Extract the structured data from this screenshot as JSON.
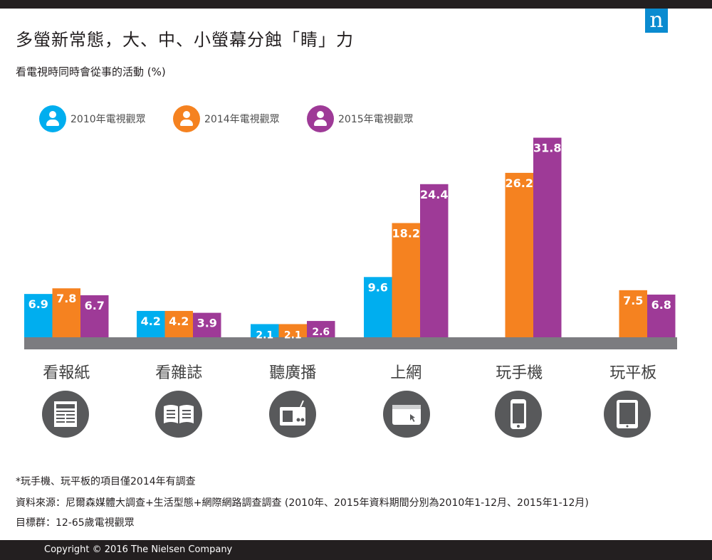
{
  "header": {
    "logo": "n",
    "title": "多螢新常態，大、中、小螢幕分蝕「睛」力",
    "subtitle": "看電視時同時會從事的活動 (%)"
  },
  "colors": {
    "series_2010": "#00aeef",
    "series_2014": "#f58220",
    "series_2015": "#9e3a97",
    "baseline": "#7c7c80",
    "icon_circle": "#58595b"
  },
  "icons": [
    "newspaper-icon",
    "magazine-icon",
    "radio-icon",
    "laptop-icon",
    "smartphone-icon",
    "tablet-icon"
  ],
  "chart_data": {
    "type": "bar",
    "title": "多螢新常態，大、中、小螢幕分蝕「睛」力",
    "subtitle": "看電視時同時會從事的活動 (%)",
    "categories": [
      "看報紙",
      "看雜誌",
      "聽廣播",
      "上網",
      "玩手機",
      "玩平板"
    ],
    "series": [
      {
        "name": "2010年電視觀眾",
        "values": [
          6.9,
          4.2,
          2.1,
          9.6,
          null,
          null
        ]
      },
      {
        "name": "2014年電視觀眾",
        "values": [
          7.8,
          4.2,
          2.1,
          18.2,
          26.2,
          7.5
        ]
      },
      {
        "name": "2015年電視觀眾",
        "values": [
          6.7,
          3.9,
          2.6,
          24.4,
          31.8,
          6.8
        ]
      }
    ],
    "ylim": [
      0,
      32
    ],
    "grid": false,
    "legend": "top-left"
  },
  "notes": {
    "footnote": "*玩手機、玩平板的項目僅2014年有調查",
    "source": "資料來源：尼爾森媒體大調查+生活型態+網際網路調查調查 (2010年、2015年資料期間分別為2010年1-12月、2015年1-12月)",
    "target": "目標群：12-65歲電視觀眾"
  },
  "footer": {
    "copyright": "Copyright © 2016 The Nielsen Company"
  }
}
